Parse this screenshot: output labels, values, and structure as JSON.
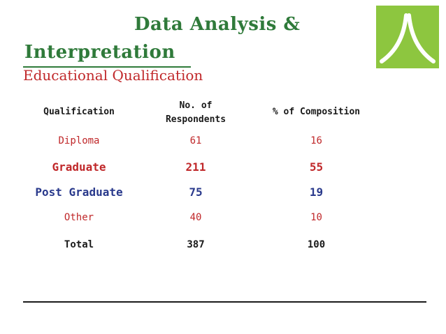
{
  "slide": {
    "title_line1": "Data Analysis &",
    "title_line2": "Interpretation",
    "subtitle": "Educational Qualification",
    "logo_icon": "arch-logo-icon",
    "colors": {
      "title": "#2f7a3a",
      "accent_red": "#c0282a",
      "accent_blue": "#2a3a8c",
      "logo_bg": "#8dc63f"
    }
  },
  "table": {
    "headers": {
      "qualification": "Qualification",
      "respondents_line1": "No. of",
      "respondents_line2": "Respondents",
      "composition": "%  of Composition"
    },
    "rows": [
      {
        "qualification": "Diploma",
        "respondents": "61",
        "composition": "16"
      },
      {
        "qualification": "Graduate",
        "respondents": "211",
        "composition": "55"
      },
      {
        "qualification": "Post Graduate",
        "respondents": "75",
        "composition": "19"
      },
      {
        "qualification": "Other",
        "respondents": "40",
        "composition": "10"
      }
    ],
    "total": {
      "label": "Total",
      "respondents": "387",
      "composition": "100"
    }
  }
}
